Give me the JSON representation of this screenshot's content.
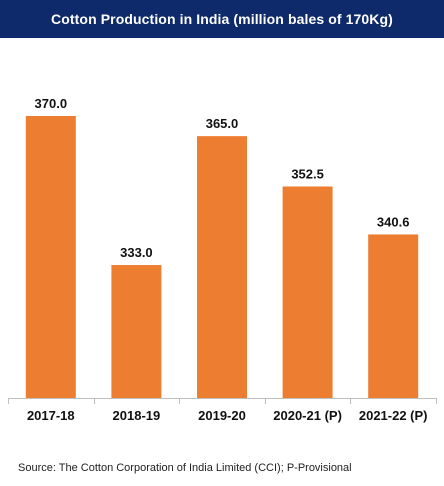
{
  "header": {
    "title": "Cotton Production in India (million bales of 170Kg)",
    "background": "#0f2a6b"
  },
  "footer": {
    "source": "Source: The Cotton Corporation of India Limited (CCI); P-Provisional"
  },
  "chart_data": {
    "type": "bar",
    "title": "Cotton Production in India (million bales of 170Kg)",
    "categories": [
      "2017-18",
      "2018-19",
      "2019-20",
      "2020-21 (P)",
      "2021-22 (P)"
    ],
    "values": [
      370.0,
      333.0,
      365.0,
      352.5,
      340.6
    ],
    "value_labels": [
      "370.0",
      "333.0",
      "365.0",
      "352.5",
      "340.6"
    ],
    "xlabel": "",
    "ylabel": "",
    "ylim": [
      300,
      370
    ],
    "grid": false,
    "legend": "none",
    "bar_color": "#ed7d31"
  }
}
